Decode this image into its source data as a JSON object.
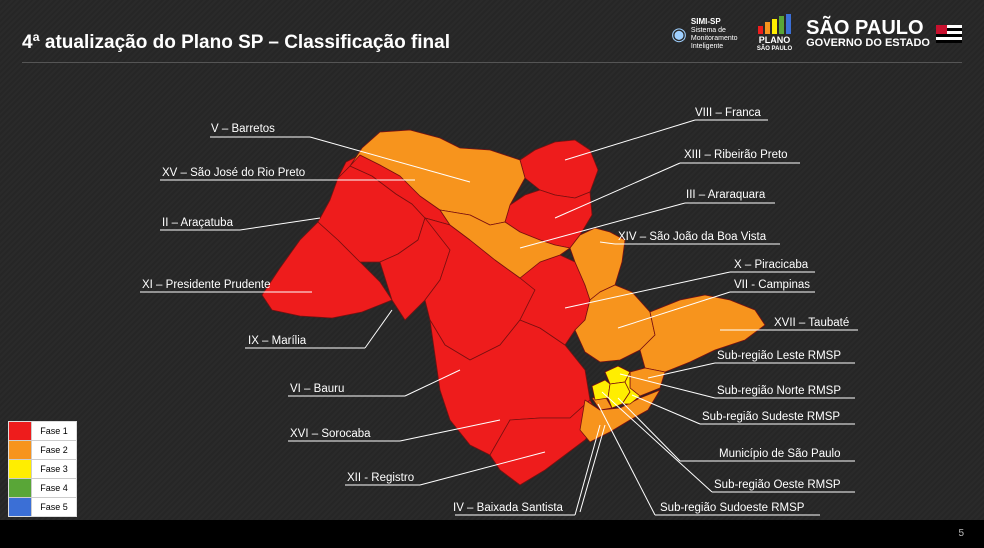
{
  "header": {
    "title": "4ª atualização do Plano SP – Classificação final",
    "logo_simi": {
      "name": "SIMI-SP",
      "subtitle": "Sistema de Monitoramento Inteligente"
    },
    "logo_plano": {
      "line1": "PLANO",
      "line2": "SÃO PAULO"
    },
    "logo_sp": {
      "line1": "SÃO PAULO",
      "line2": "GOVERNO DO ESTADO"
    }
  },
  "colors": {
    "fase1": "#ee1c1c",
    "fase2": "#f7941d",
    "fase3": "#ffee00",
    "fase4": "#59a637",
    "fase5": "#3b6fd6"
  },
  "legend": [
    {
      "label": "Fase 1",
      "color": "#ee1c1c"
    },
    {
      "label": "Fase 2",
      "color": "#f7941d"
    },
    {
      "label": "Fase 3",
      "color": "#ffee00"
    },
    {
      "label": "Fase 4",
      "color": "#59a637"
    },
    {
      "label": "Fase 5",
      "color": "#3b6fd6"
    }
  ],
  "regions": {
    "barretos": {
      "label": "V – Barretos",
      "phase": 2
    },
    "rio_preto": {
      "label": "XV – São José do Rio Preto",
      "phase": 1
    },
    "aracatuba": {
      "label": "II – Araçatuba",
      "phase": 1
    },
    "presidente_prudente": {
      "label": "XI – Presidente Prudente",
      "phase": 1
    },
    "marilia": {
      "label": "IX – Marília",
      "phase": 1
    },
    "bauru": {
      "label": "VI – Bauru",
      "phase": 1
    },
    "sorocaba": {
      "label": "XVI – Sorocaba",
      "phase": 1
    },
    "registro": {
      "label": "XII - Registro",
      "phase": 1
    },
    "baixada_santista": {
      "label": "IV – Baixada Santista",
      "phase": 2
    },
    "franca": {
      "label": "VIII – Franca",
      "phase": 1
    },
    "ribeirao_preto": {
      "label": "XIII – Ribeirão Preto",
      "phase": 1
    },
    "araraquara": {
      "label": "III – Araraquara",
      "phase": 2
    },
    "sao_joao_boa_vista": {
      "label": "XIV – São João da Boa Vista",
      "phase": 2
    },
    "piracicaba": {
      "label": "X – Piracicaba",
      "phase": 1
    },
    "campinas": {
      "label": "VII - Campinas",
      "phase": 2
    },
    "taubate": {
      "label": "XVII – Taubaté",
      "phase": 2
    },
    "rmsp_leste": {
      "label": "Sub-região Leste RMSP",
      "phase": 2
    },
    "rmsp_norte": {
      "label": "Sub-região Norte RMSP",
      "phase": 3
    },
    "rmsp_sudeste": {
      "label": "Sub-região Sudeste RMSP",
      "phase": 3
    },
    "municipio_sp": {
      "label": "Município de São Paulo",
      "phase": 3
    },
    "rmsp_oeste": {
      "label": "Sub-região Oeste RMSP",
      "phase": 3
    },
    "rmsp_sudoeste": {
      "label": "Sub-região Sudoeste RMSP",
      "phase": 2
    }
  },
  "page_number": "5"
}
